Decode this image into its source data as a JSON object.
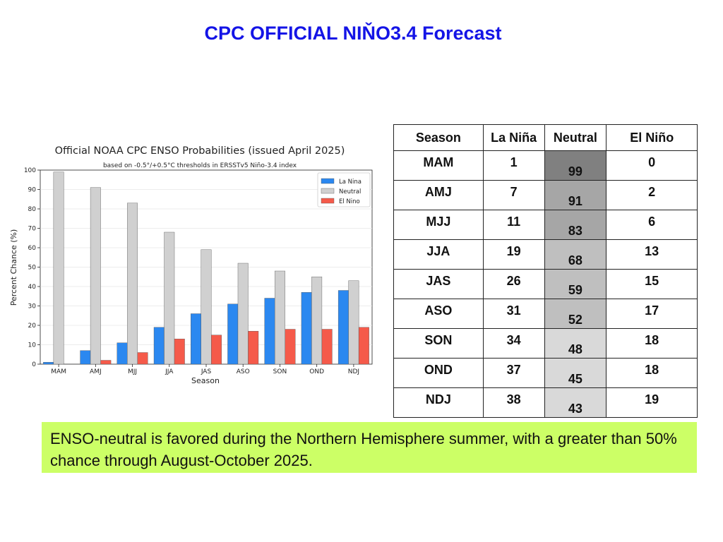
{
  "slide": {
    "title": "CPC OFFICIAL NIŇO3.4 Forecast",
    "summary": "ENSO-neutral is favored during the Northern Hemisphere summer, with a greater than 50% chance through August-October 2025."
  },
  "chart_data": {
    "type": "bar",
    "title": "Official NOAA CPC ENSO Probabilities (issued April 2025)",
    "subtitle": "based on -0.5°/+0.5°C thresholds in ERSSTv5 Niño-3.4 index",
    "xlabel": "Season",
    "ylabel": "Percent Chance (%)",
    "ylim": [
      0,
      100
    ],
    "yticks": [
      0,
      10,
      20,
      30,
      40,
      50,
      60,
      70,
      80,
      90,
      100
    ],
    "grid": true,
    "legend_position": "top-right",
    "categories": [
      "MAM",
      "AMJ",
      "MJJ",
      "JJA",
      "JAS",
      "ASO",
      "SON",
      "OND",
      "NDJ"
    ],
    "series": [
      {
        "name": "La Nina",
        "color": "#2b88f0",
        "values": [
          1,
          7,
          11,
          19,
          26,
          31,
          34,
          37,
          38
        ]
      },
      {
        "name": "Neutral",
        "color": "#d0d0d0",
        "values": [
          99,
          91,
          83,
          68,
          59,
          52,
          48,
          45,
          43
        ]
      },
      {
        "name": "El Nino",
        "color": "#f55a4a",
        "values": [
          0,
          2,
          6,
          13,
          15,
          17,
          18,
          18,
          19
        ]
      }
    ]
  },
  "table": {
    "headers": [
      "Season",
      "La Niña",
      "Neutral",
      "El Niño"
    ],
    "rows": [
      {
        "season": "MAM",
        "la_nina": "1",
        "neutral": "99",
        "el_nino": "0",
        "neutral_shade": "#808080"
      },
      {
        "season": "AMJ",
        "la_nina": "7",
        "neutral": "91",
        "el_nino": "2",
        "neutral_shade": "#a6a6a6"
      },
      {
        "season": "MJJ",
        "la_nina": "11",
        "neutral": "83",
        "el_nino": "6",
        "neutral_shade": "#a6a6a6"
      },
      {
        "season": "JJA",
        "la_nina": "19",
        "neutral": "68",
        "el_nino": "13",
        "neutral_shade": "#bfbfbf"
      },
      {
        "season": "JAS",
        "la_nina": "26",
        "neutral": "59",
        "el_nino": "15",
        "neutral_shade": "#bfbfbf"
      },
      {
        "season": "ASO",
        "la_nina": "31",
        "neutral": "52",
        "el_nino": "17",
        "neutral_shade": "#bfbfbf"
      },
      {
        "season": "SON",
        "la_nina": "34",
        "neutral": "48",
        "el_nino": "18",
        "neutral_shade": "#d9d9d9"
      },
      {
        "season": "OND",
        "la_nina": "37",
        "neutral": "45",
        "el_nino": "18",
        "neutral_shade": "#d9d9d9"
      },
      {
        "season": "NDJ",
        "la_nina": "38",
        "neutral": "43",
        "el_nino": "19",
        "neutral_shade": "#d9d9d9"
      }
    ]
  }
}
